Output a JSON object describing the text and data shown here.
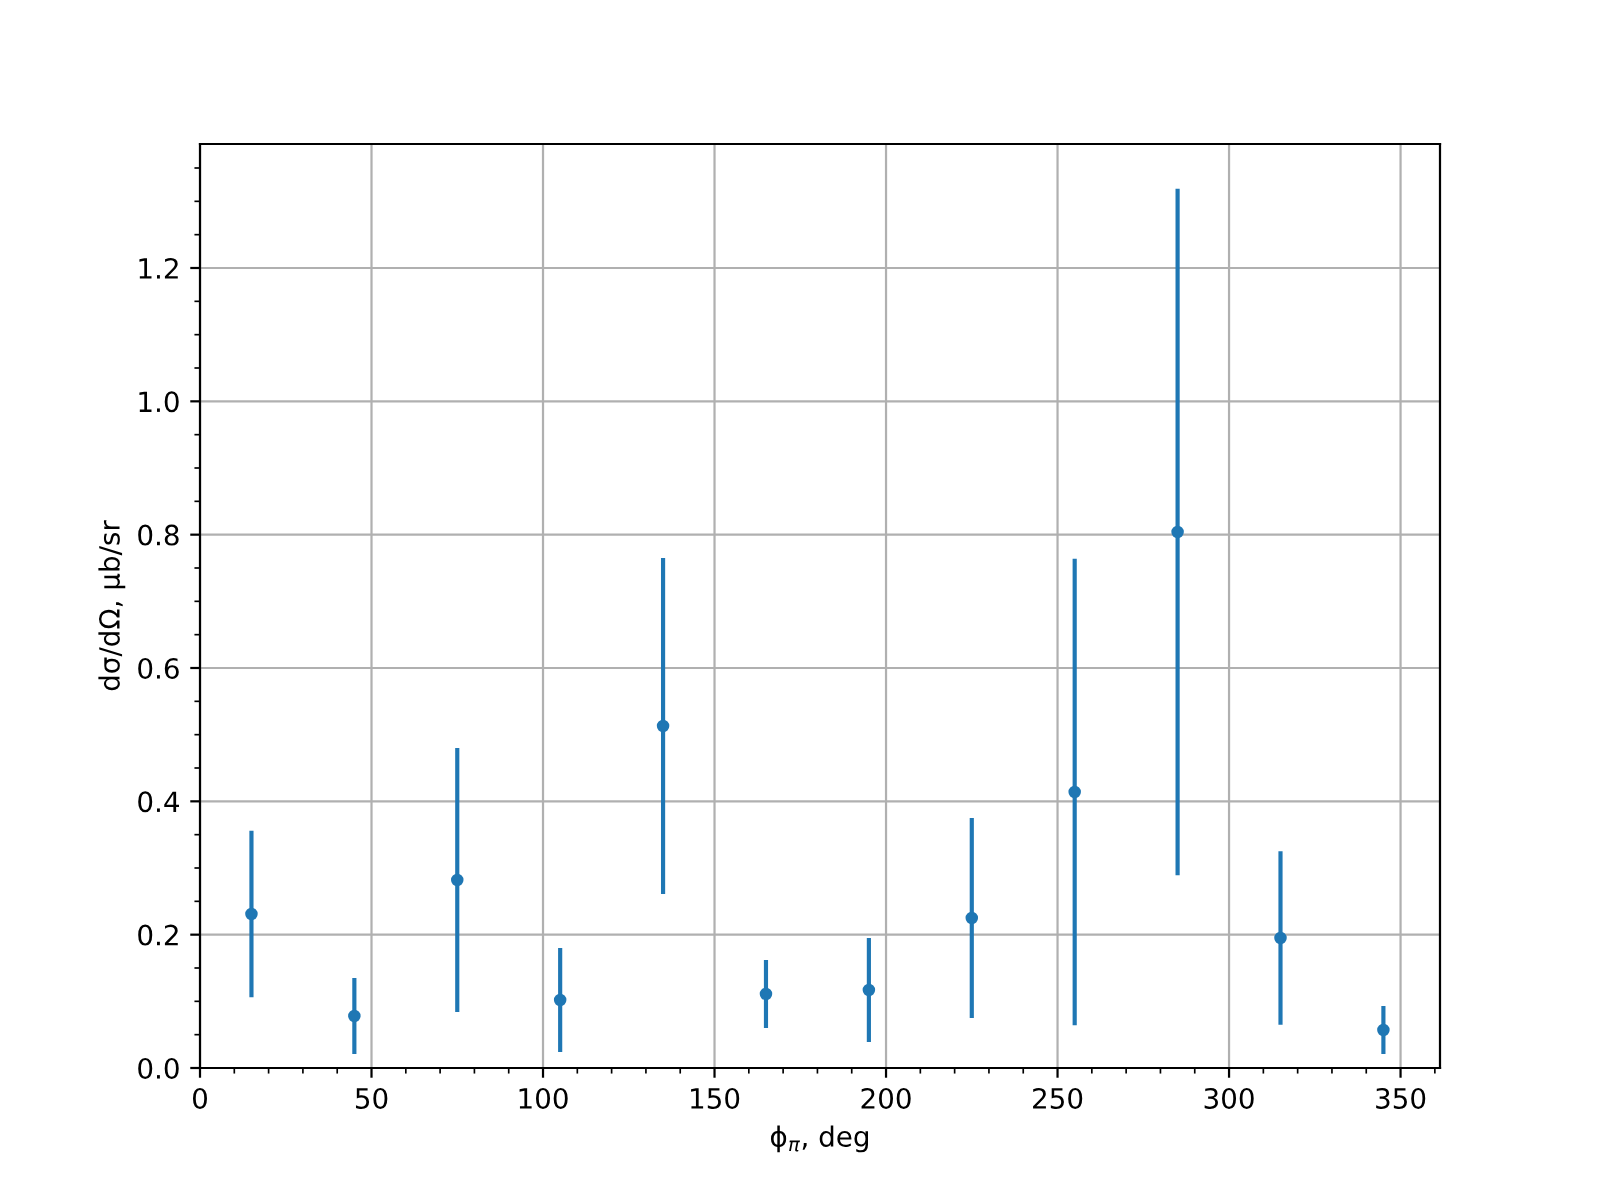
{
  "chart_data": {
    "type": "scatter",
    "xlabel": "ϕ$_{π}$, deg",
    "ylabel": "dσ/dΩ, μb/sr",
    "x": [
      15,
      45,
      75,
      105,
      135,
      165,
      195,
      225,
      255,
      285,
      315,
      345
    ],
    "series": [
      {
        "color": "#1f77b4",
        "values": [
          0.231,
          0.078,
          0.282,
          0.102,
          0.513,
          0.111,
          0.117,
          0.225,
          0.414,
          0.804,
          0.195,
          0.057
        ],
        "errors": [
          0.125,
          0.057,
          0.198,
          0.078,
          0.252,
          0.051,
          0.078,
          0.15,
          0.35,
          0.515,
          0.13,
          0.036
        ]
      }
    ],
    "xlim": [
      0,
      361.5
    ],
    "ylim": [
      0,
      1.386
    ],
    "xticks": [
      0,
      50,
      100,
      150,
      200,
      250,
      300,
      350
    ],
    "yticks": [
      {
        "value": 0,
        "label": "0.0"
      },
      {
        "value": 0.2,
        "label": "0.2"
      },
      {
        "value": 0.4,
        "label": "0.4"
      },
      {
        "value": 0.6,
        "label": "0.6"
      },
      {
        "value": 0.8,
        "label": "0.8"
      },
      {
        "value": 1.0,
        "label": "1.0"
      },
      {
        "value": 1.2,
        "label": "1.2"
      }
    ],
    "grid": true,
    "marker": "circle"
  }
}
